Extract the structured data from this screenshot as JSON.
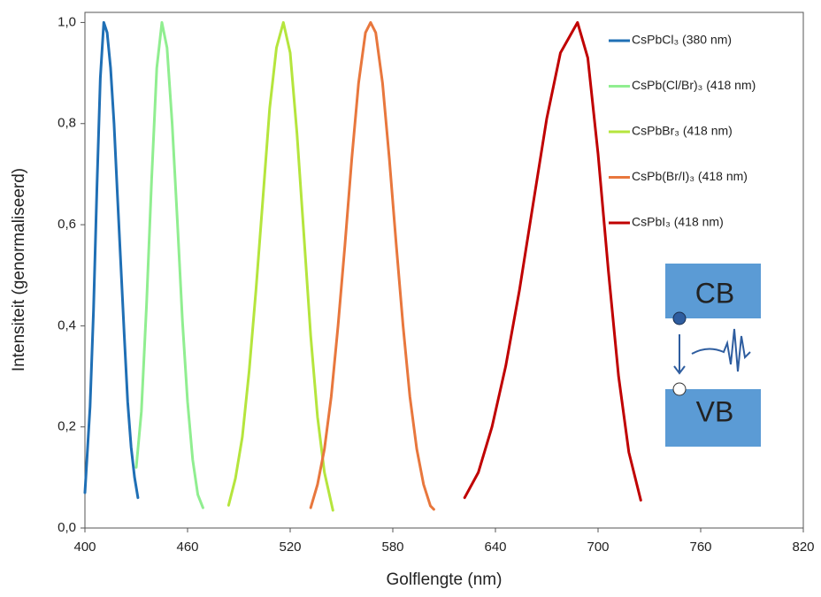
{
  "chart_data": {
    "type": "line",
    "x_label": "Golflengte (nm)",
    "y_label": "Intensiteit (genormaliseerd)",
    "xlim": [
      400,
      820
    ],
    "xticks": [
      400,
      460,
      520,
      580,
      640,
      700,
      760,
      820
    ],
    "ylim": [
      0,
      1.02
    ],
    "yticks": [
      {
        "value": 0,
        "label": "0,0"
      },
      {
        "value": 0.2,
        "label": "0,2"
      },
      {
        "value": 0.4,
        "label": "0,4"
      },
      {
        "value": 0.6,
        "label": "0,6"
      },
      {
        "value": 0.8,
        "label": "0,8"
      },
      {
        "value": 1.0,
        "label": "1,0"
      }
    ],
    "grid": false,
    "legend": "top-right",
    "annotations": [
      "CB",
      "VB"
    ],
    "series": [
      {
        "name": "CsPbCl₃ (380 nm)",
        "color": "#1f6fb5",
        "x": [
          400,
          403,
          405,
          407,
          409,
          411,
          413,
          415,
          417,
          419,
          421,
          423,
          425,
          427,
          429,
          431
        ],
        "values": [
          0.07,
          0.24,
          0.43,
          0.67,
          0.89,
          1.0,
          0.98,
          0.91,
          0.8,
          0.66,
          0.52,
          0.38,
          0.25,
          0.16,
          0.1,
          0.06
        ]
      },
      {
        "name": "CsPb(Cl/Br)₃ (418 nm)",
        "color": "#90ee90",
        "x": [
          430,
          433,
          436,
          439,
          442,
          445,
          448,
          451,
          454,
          457,
          460,
          463,
          466,
          469
        ],
        "values": [
          0.12,
          0.23,
          0.44,
          0.69,
          0.91,
          1.0,
          0.95,
          0.8,
          0.61,
          0.41,
          0.25,
          0.135,
          0.066,
          0.04
        ]
      },
      {
        "name": "CsPbBr₃ (418 nm)",
        "color": "#b5e53d",
        "x": [
          484,
          488,
          492,
          496,
          500,
          504,
          508,
          512,
          516,
          520,
          524,
          528,
          532,
          536,
          540,
          545
        ],
        "values": [
          0.045,
          0.098,
          0.18,
          0.31,
          0.47,
          0.65,
          0.83,
          0.95,
          1.0,
          0.94,
          0.78,
          0.58,
          0.38,
          0.22,
          0.11,
          0.035
        ]
      },
      {
        "name": "CsPb(Br/I)₃ (418 nm)",
        "color": "#e8773d",
        "x": [
          532,
          536,
          540,
          544,
          548,
          552,
          556,
          560,
          564,
          567,
          570,
          574,
          578,
          582,
          586,
          590,
          594,
          598,
          602,
          604
        ],
        "values": [
          0.04,
          0.086,
          0.156,
          0.26,
          0.4,
          0.56,
          0.73,
          0.88,
          0.98,
          1.0,
          0.98,
          0.88,
          0.73,
          0.56,
          0.4,
          0.26,
          0.156,
          0.086,
          0.044,
          0.037
        ]
      },
      {
        "name": "CsPbI₃ (418 nm)",
        "color": "#c00000",
        "x": [
          622,
          630,
          638,
          646,
          654,
          662,
          670,
          678,
          688,
          694,
          700,
          706,
          712,
          718,
          725
        ],
        "values": [
          0.06,
          0.11,
          0.2,
          0.32,
          0.47,
          0.64,
          0.81,
          0.94,
          1.0,
          0.93,
          0.74,
          0.51,
          0.3,
          0.15,
          0.055
        ]
      }
    ]
  }
}
